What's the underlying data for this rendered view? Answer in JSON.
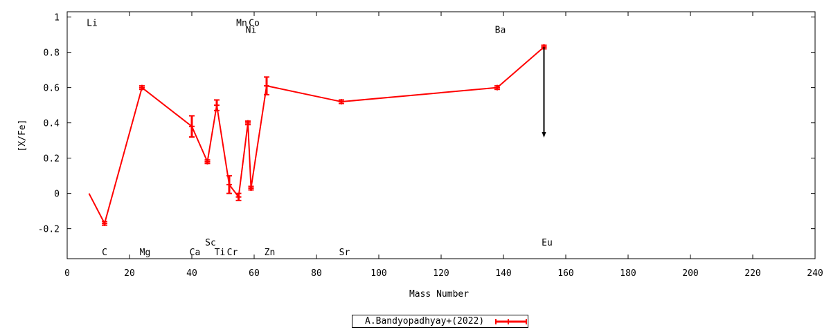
{
  "chart_data": {
    "type": "line",
    "xlabel": "Mass Number",
    "ylabel": "[X/Fe]",
    "xlim": [
      0,
      240
    ],
    "ylim": [
      -0.37,
      1.03
    ],
    "x_ticks": [
      0,
      20,
      40,
      60,
      80,
      100,
      120,
      140,
      160,
      180,
      200,
      220,
      240
    ],
    "y_ticks": [
      -0.2,
      0,
      0.2,
      0.4,
      0.6,
      0.8,
      1
    ],
    "y_tick_labels": [
      "-0.2",
      "0",
      "0.2",
      "0.4",
      "0.6",
      "0.8",
      "1"
    ],
    "grid": false,
    "legend_position": "bottom-center",
    "colors": {
      "series": "#ff0000",
      "limit_arrow": "#000000",
      "axes": "#000000"
    },
    "series": [
      {
        "name": "A.Bandyopadhyay+(2022)",
        "points": [
          {
            "x": 7,
            "y": 0.0
          },
          {
            "x": 12,
            "y": -0.17,
            "err": 0.01
          },
          {
            "x": 24,
            "y": 0.6,
            "err": 0.01
          },
          {
            "x": 40,
            "y": 0.38,
            "err": 0.06
          },
          {
            "x": 45,
            "y": 0.18,
            "err": 0.01
          },
          {
            "x": 48,
            "y": 0.5,
            "err": 0.03
          },
          {
            "x": 52,
            "y": 0.05,
            "err": 0.05
          },
          {
            "x": 55,
            "y": -0.02,
            "err": 0.02
          },
          {
            "x": 58,
            "y": 0.4,
            "err": 0.01
          },
          {
            "x": 59,
            "y": 0.03,
            "err": 0.01
          },
          {
            "x": 64,
            "y": 0.61,
            "err": 0.05
          },
          {
            "x": 88,
            "y": 0.52,
            "err": 0.01
          },
          {
            "x": 138,
            "y": 0.6,
            "err": 0.01
          },
          {
            "x": 153,
            "y": 0.83,
            "err": 0.01
          }
        ]
      }
    ],
    "upper_limit_arrow": {
      "x": 153,
      "y_from": 0.83,
      "y_to": 0.32
    },
    "element_labels": [
      {
        "text": "Li",
        "x": 8,
        "y": 0.97
      },
      {
        "text": "Mn",
        "x": 56,
        "y": 0.97
      },
      {
        "text": "Co",
        "x": 60,
        "y": 0.97
      },
      {
        "text": "Ni",
        "x": 59,
        "y": 0.93
      },
      {
        "text": "Ba",
        "x": 139,
        "y": 0.93
      },
      {
        "text": "C",
        "x": 12,
        "y": -0.33
      },
      {
        "text": "Mg",
        "x": 25,
        "y": -0.33
      },
      {
        "text": "Ca",
        "x": 41,
        "y": -0.33
      },
      {
        "text": "Sc",
        "x": 46,
        "y": -0.275
      },
      {
        "text": "Ti",
        "x": 49,
        "y": -0.33
      },
      {
        "text": "Cr",
        "x": 53,
        "y": -0.33
      },
      {
        "text": "Zn",
        "x": 65,
        "y": -0.33
      },
      {
        "text": "Sr",
        "x": 89,
        "y": -0.33
      },
      {
        "text": "Eu",
        "x": 154,
        "y": -0.275
      }
    ]
  },
  "legend": {
    "label": "A.Bandyopadhyay+(2022)"
  }
}
